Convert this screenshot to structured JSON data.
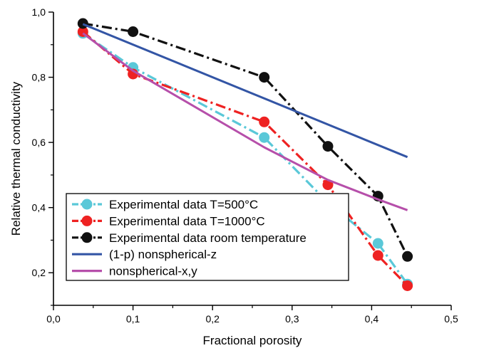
{
  "chart_data": {
    "type": "line",
    "title": "",
    "xlabel": "Fractional porosity",
    "ylabel": "Relative thermal conductivity",
    "xlim": [
      0.0,
      0.5
    ],
    "ylim": [
      0.1,
      1.0
    ],
    "xticks": [
      {
        "value": 0.0,
        "label": "0,0"
      },
      {
        "value": 0.1,
        "label": "0,1"
      },
      {
        "value": 0.2,
        "label": "0,2"
      },
      {
        "value": 0.3,
        "label": "0,3"
      },
      {
        "value": 0.4,
        "label": "0,4"
      },
      {
        "value": 0.5,
        "label": "0,5"
      }
    ],
    "yticks": [
      {
        "value": 0.2,
        "label": "0,2"
      },
      {
        "value": 0.4,
        "label": "0,4"
      },
      {
        "value": 0.6,
        "label": "0,6"
      },
      {
        "value": 0.8,
        "label": "0,8"
      },
      {
        "value": 1.0,
        "label": "1,0"
      }
    ],
    "grid": false,
    "legend_position": "bottom-left",
    "series": [
      {
        "name": "Experimental data T=500°C",
        "color": "#5ac8d8",
        "style": "dash-dot",
        "markers": true,
        "x": [
          0.037,
          0.1,
          0.265,
          0.345,
          0.408,
          0.445
        ],
        "y": [
          0.935,
          0.83,
          0.615,
          0.415,
          0.29,
          0.165
        ]
      },
      {
        "name": "Experimental data T=1000°C",
        "color": "#ee2222",
        "style": "dash-dot",
        "markers": true,
        "x": [
          0.037,
          0.1,
          0.265,
          0.345,
          0.408,
          0.445
        ],
        "y": [
          0.94,
          0.81,
          0.663,
          0.47,
          0.253,
          0.16
        ]
      },
      {
        "name": "Experimental data room temperature",
        "color": "#111111",
        "style": "dash-dot",
        "markers": true,
        "x": [
          0.037,
          0.1,
          0.265,
          0.345,
          0.408,
          0.445
        ],
        "y": [
          0.965,
          0.94,
          0.8,
          0.588,
          0.435,
          0.25
        ]
      },
      {
        "name": "(1-p) nonspherical-z",
        "color": "#3355a5",
        "style": "solid",
        "markers": false,
        "x": [
          0.037,
          0.445
        ],
        "y": [
          0.963,
          0.555
        ]
      },
      {
        "name": "nonspherical-x,y",
        "color": "#b64faa",
        "style": "solid",
        "markers": false,
        "x": [
          0.037,
          0.1,
          0.265,
          0.345,
          0.408,
          0.445
        ],
        "y": [
          0.935,
          0.82,
          0.585,
          0.485,
          0.425,
          0.392
        ]
      }
    ]
  }
}
